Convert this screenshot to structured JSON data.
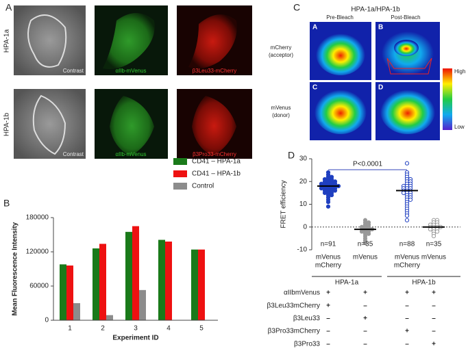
{
  "panels": {
    "a": {
      "label": "A",
      "rows": [
        "HPA-1a",
        "HPA-1b"
      ],
      "captions": [
        [
          "Contrast",
          "αIIb-mVenus",
          "β3Leu33-mCherry"
        ],
        [
          "Contrast",
          "αIIb-mVenus",
          "β3Pro33-mCherry"
        ]
      ]
    },
    "c": {
      "label": "C",
      "title": "HPA-1a/HPA-1b",
      "columns": [
        "Pre-Bleach",
        "Post-Bleach"
      ],
      "rows": [
        [
          "mCherry",
          "(acceptor)"
        ],
        [
          "mVenus",
          "(donor)"
        ]
      ],
      "tiles": [
        "A",
        "B",
        "C",
        "D"
      ],
      "scale": [
        "High",
        "Low"
      ]
    }
  },
  "chart_data": [
    {
      "type": "bar",
      "panel": "B",
      "ylabel": "Mean Fluorescence Intensity",
      "xlabel": "Experiment ID",
      "categories": [
        "1",
        "2",
        "3",
        "4",
        "5"
      ],
      "series": [
        {
          "name": "CD41 – HPA-1a",
          "color": "#1a7a1a",
          "values": [
            98000,
            126000,
            155000,
            141000,
            124000
          ]
        },
        {
          "name": "CD41 – HPA-1b",
          "color": "#ee1111",
          "values": [
            96000,
            134000,
            165000,
            138000,
            124000
          ]
        },
        {
          "name": "Control",
          "color": "#8c8c8c",
          "values": [
            30000,
            9000,
            53000,
            null,
            null
          ]
        }
      ],
      "ylim": [
        0,
        180000
      ],
      "yticks": [
        0,
        60000,
        120000,
        180000
      ],
      "legend": "top-right"
    },
    {
      "type": "scatter",
      "panel": "D",
      "ylabel": "FRET efficiency",
      "ylim": [
        -10,
        30
      ],
      "yticks": [
        -10,
        0,
        10,
        20,
        30
      ],
      "zero_line": true,
      "categories": [
        [
          "mVenus",
          "mCherry"
        ],
        [
          "mVenus"
        ],
        [
          "mVenus",
          "mCherry"
        ],
        [
          "mVenus"
        ]
      ],
      "counts": [
        "n=91",
        "n=35",
        "n=88",
        "n=35"
      ],
      "groups": [
        "HPA-1a",
        "HPA-1b"
      ],
      "annotation": "P<0.0001",
      "series": [
        {
          "color": "#1f3fc0",
          "filled": true,
          "mean": 18,
          "values": [
            24,
            23,
            22,
            22,
            21,
            21,
            21,
            20,
            20,
            20,
            20,
            19,
            19,
            19,
            19,
            19,
            18,
            18,
            18,
            18,
            18,
            18,
            17,
            17,
            17,
            17,
            17,
            16,
            16,
            16,
            16,
            15,
            15,
            15,
            14,
            14,
            13,
            12,
            11,
            9
          ]
        },
        {
          "color": "#999999",
          "filled": true,
          "mean": -1,
          "values": [
            3,
            2,
            2,
            1,
            1,
            0,
            0,
            0,
            -1,
            -1,
            -1,
            -1,
            -2,
            -2,
            -2,
            -3,
            -3,
            -4,
            -5,
            -6,
            -7
          ]
        },
        {
          "color": "#1f3fc0",
          "filled": false,
          "mean": 16,
          "values": [
            28,
            24,
            23,
            22,
            21,
            21,
            20,
            20,
            19,
            19,
            18,
            18,
            18,
            17,
            17,
            17,
            16,
            16,
            16,
            15,
            15,
            15,
            14,
            14,
            13,
            13,
            12,
            12,
            11,
            10,
            9,
            8,
            7,
            6,
            5,
            3
          ]
        },
        {
          "color": "#999999",
          "filled": false,
          "mean": 0,
          "values": [
            3,
            3,
            2,
            2,
            1,
            1,
            1,
            0,
            0,
            0,
            0,
            -1,
            -1,
            -1,
            -2,
            -2,
            -3,
            -4
          ]
        }
      ]
    }
  ],
  "table": {
    "rows": [
      {
        "label": "αIIbmVenus",
        "marks": [
          "+",
          "+",
          "+",
          "+"
        ]
      },
      {
        "label": "β3Leu33mCherry",
        "marks": [
          "+",
          "–",
          "–",
          "–"
        ]
      },
      {
        "label": "β3Leu33",
        "marks": [
          "–",
          "+",
          "–",
          "–"
        ]
      },
      {
        "label": "β3Pro33mCherry",
        "marks": [
          "–",
          "–",
          "+",
          "–"
        ]
      },
      {
        "label": "β3Pro33",
        "marks": [
          "–",
          "–",
          "–",
          "+"
        ]
      }
    ]
  }
}
